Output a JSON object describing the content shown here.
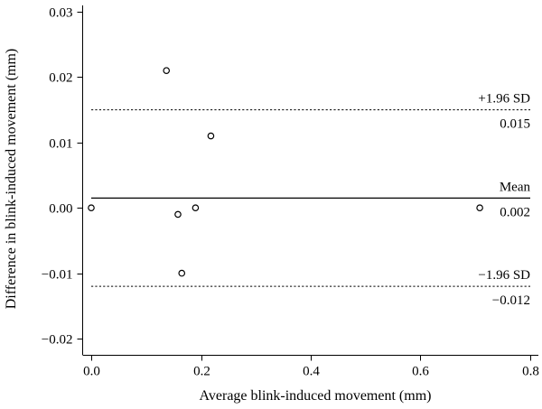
{
  "chart_data": {
    "type": "scatter",
    "xlabel": "Average blink-induced movement (mm)",
    "ylabel": "Difference in blink-induced movement (mm)",
    "xlim": [
      0.0,
      0.8
    ],
    "ylim": [
      -0.02,
      0.03
    ],
    "x_ticks": [
      0.0,
      0.2,
      0.4,
      0.6,
      0.8
    ],
    "x_tick_labels": [
      "0.0",
      "0.2",
      "0.4",
      "0.6",
      "0.8"
    ],
    "y_ticks": [
      -0.02,
      -0.01,
      0.0,
      0.01,
      0.02,
      0.03
    ],
    "y_tick_labels": [
      "−0.02",
      "−0.01",
      "0.00",
      "0.01",
      "0.02",
      "0.03"
    ],
    "grid": false,
    "points": [
      {
        "x": 0.0,
        "y": 0.0
      },
      {
        "x": 0.137,
        "y": 0.021
      },
      {
        "x": 0.158,
        "y": -0.001
      },
      {
        "x": 0.165,
        "y": -0.01
      },
      {
        "x": 0.19,
        "y": 0.0
      },
      {
        "x": 0.218,
        "y": 0.011
      },
      {
        "x": 0.708,
        "y": 0.0
      }
    ],
    "reference_lines": [
      {
        "name": "mean",
        "y": 0.0015,
        "style": "solid",
        "label_top": "Mean",
        "label_bottom": "0.002"
      },
      {
        "name": "upper-limit",
        "y": 0.015,
        "style": "dotted",
        "label_top": "+1.96 SD",
        "label_bottom": "0.015"
      },
      {
        "name": "lower-limit",
        "y": -0.012,
        "style": "dotted",
        "label_top": "−1.96 SD",
        "label_bottom": "−0.012"
      }
    ]
  }
}
